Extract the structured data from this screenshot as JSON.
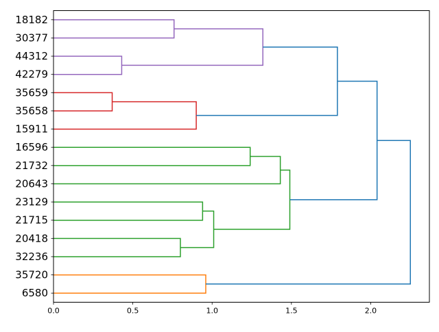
{
  "chart_data": {
    "type": "dendrogram",
    "orientation": "left",
    "title": "",
    "xlabel": "",
    "ylabel": "",
    "xlim": [
      0,
      2.37
    ],
    "x_ticks": [
      {
        "value": 0.0,
        "label": "0.0"
      },
      {
        "value": 0.5,
        "label": "0.5"
      },
      {
        "value": 1.0,
        "label": "1.0"
      },
      {
        "value": 1.5,
        "label": "1.5"
      },
      {
        "value": 2.0,
        "label": "2.0"
      }
    ],
    "leaves": [
      "18182",
      "30377",
      "44312",
      "42279",
      "35659",
      "35658",
      "15911",
      "16596",
      "21732",
      "20643",
      "23129",
      "21715",
      "20418",
      "32236",
      "35720",
      "6580"
    ],
    "colors": {
      "purple": "#9467bd",
      "red": "#d62728",
      "green": "#2ca02c",
      "orange": "#ff7f0e",
      "blue": "#1f77b4"
    },
    "merges": [
      {
        "a": "18182",
        "b": "30377",
        "distance": 0.76,
        "color": "purple",
        "id": "p1"
      },
      {
        "a": "44312",
        "b": "42279",
        "distance": 0.43,
        "color": "purple",
        "id": "p2"
      },
      {
        "a": "p1",
        "b": "p2",
        "distance": 1.32,
        "color": "purple",
        "id": "p3"
      },
      {
        "a": "35659",
        "b": "35658",
        "distance": 0.37,
        "color": "red",
        "id": "r1"
      },
      {
        "a": "r1",
        "b": "15911",
        "distance": 0.9,
        "color": "red",
        "id": "r2"
      },
      {
        "a": "p3",
        "b": "r2",
        "distance": 1.79,
        "color": "blue",
        "id": "b1"
      },
      {
        "a": "16596",
        "b": "21732",
        "distance": 1.24,
        "color": "green",
        "id": "g1"
      },
      {
        "a": "g1",
        "b": "20643",
        "distance": 1.43,
        "color": "green",
        "id": "g2"
      },
      {
        "a": "23129",
        "b": "21715",
        "distance": 0.94,
        "color": "green",
        "id": "g3"
      },
      {
        "a": "20418",
        "b": "32236",
        "distance": 0.8,
        "color": "green",
        "id": "g4"
      },
      {
        "a": "g3",
        "b": "g4",
        "distance": 1.01,
        "color": "green",
        "id": "g5"
      },
      {
        "a": "g2",
        "b": "g5",
        "distance": 1.49,
        "color": "green",
        "id": "g6"
      },
      {
        "a": "b1",
        "b": "g6",
        "distance": 2.04,
        "color": "blue",
        "id": "b2"
      },
      {
        "a": "35720",
        "b": "6580",
        "distance": 0.96,
        "color": "orange",
        "id": "o1"
      },
      {
        "a": "b2",
        "b": "o1",
        "distance": 2.25,
        "color": "blue",
        "id": "b3"
      }
    ]
  }
}
